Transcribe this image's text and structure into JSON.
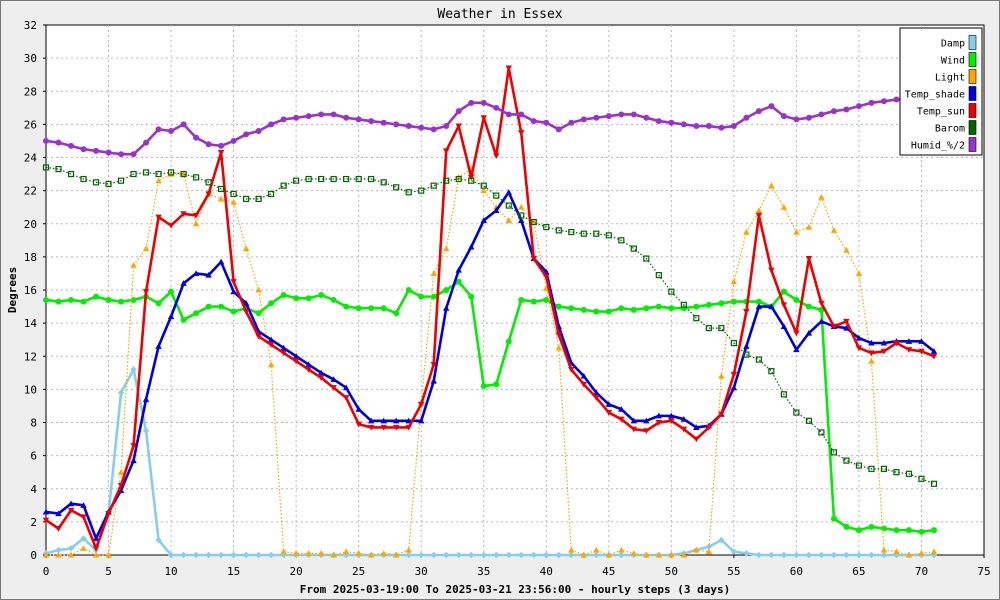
{
  "chart_data": {
    "type": "line",
    "title": "Weather in Essex",
    "xlabel": "From 2025-03-19:00 To 2025-03-21 23:56:00 - hourly steps (3 days)",
    "ylabel": "Degrees",
    "xlim": [
      0,
      75
    ],
    "ylim": [
      0,
      32
    ],
    "xticks": [
      0,
      5,
      10,
      15,
      20,
      25,
      30,
      35,
      40,
      45,
      50,
      55,
      60,
      65,
      70,
      75
    ],
    "yticks": [
      0,
      2,
      4,
      6,
      8,
      10,
      12,
      14,
      16,
      18,
      20,
      22,
      24,
      26,
      28,
      30,
      32
    ],
    "grid": true,
    "legend_position": "top-right",
    "series": [
      {
        "name": "Damp",
        "color": "#87ceeb",
        "marker": "diamond",
        "line": "solid",
        "values": [
          0.1,
          0.3,
          0.4,
          1.0,
          0.3,
          2.5,
          9.8,
          11.2,
          7.5,
          0.9,
          0,
          0,
          0,
          0,
          0,
          0,
          0,
          0,
          0,
          0,
          0,
          0,
          0,
          0,
          0,
          0,
          0,
          0,
          0,
          0,
          0,
          0,
          0,
          0,
          0,
          0,
          0,
          0,
          0,
          0,
          0,
          0,
          0,
          0,
          0,
          0,
          0,
          0,
          0,
          0,
          0,
          0.1,
          0.3,
          0.5,
          0.9,
          0.2,
          0.1,
          0,
          0,
          0,
          0,
          0,
          0,
          0,
          0,
          0,
          0,
          0,
          0,
          0,
          0,
          0
        ]
      },
      {
        "name": "Wind",
        "color": "#00ee00",
        "marker": "circle",
        "line": "solid",
        "values": [
          15.4,
          15.3,
          15.4,
          15.3,
          15.6,
          15.4,
          15.3,
          15.4,
          15.6,
          15.2,
          15.9,
          14.2,
          14.6,
          15.0,
          15.0,
          14.7,
          14.9,
          14.6,
          15.2,
          15.7,
          15.5,
          15.5,
          15.7,
          15.4,
          15.0,
          14.9,
          14.9,
          14.9,
          14.6,
          16.0,
          15.6,
          15.6,
          16.0,
          16.5,
          15.6,
          10.2,
          10.3,
          12.9,
          15.4,
          15.3,
          15.4,
          15.0,
          14.9,
          14.8,
          14.7,
          14.7,
          14.9,
          14.8,
          14.9,
          15.0,
          14.9,
          14.9,
          15.0,
          15.1,
          15.2,
          15.3,
          15.3,
          15.3,
          15.0,
          15.9,
          15.4,
          15.0,
          14.8,
          2.2,
          1.7,
          1.5,
          1.7,
          1.6,
          1.5,
          1.5,
          1.4,
          1.5
        ]
      },
      {
        "name": "Light",
        "color": "#ffa500",
        "marker": "triangle-up",
        "line": "dotted",
        "values": [
          0,
          0,
          0,
          0.4,
          0,
          0,
          5.0,
          17.5,
          18.5,
          22.6,
          23.0,
          23.0,
          20.0,
          21.8,
          21.5,
          21.3,
          18.5,
          16.0,
          11.5,
          0.2,
          0.1,
          0.1,
          0.1,
          0,
          0.2,
          0.1,
          0,
          0.1,
          0,
          0.3,
          9.2,
          17.0,
          18.5,
          22.8,
          23.3,
          22.0,
          21.0,
          20.2,
          21.0,
          20.1,
          16.1,
          12.5,
          0.3,
          0,
          0.3,
          0,
          0.3,
          0.1,
          0,
          0,
          0,
          0,
          0.3,
          0.2,
          10.8,
          16.5,
          19.5,
          20.8,
          22.3,
          21.0,
          19.5,
          19.8,
          21.6,
          19.6,
          18.4,
          17.0,
          11.7,
          0.3,
          0.2,
          0,
          0.1,
          0.2
        ]
      },
      {
        "name": "Temp_shade",
        "color": "#0000dd",
        "marker": "triangle-up",
        "line": "solid",
        "values": [
          2.6,
          2.5,
          3.1,
          3.0,
          1.0,
          2.6,
          3.9,
          5.7,
          9.4,
          12.6,
          14.4,
          16.4,
          17.0,
          16.9,
          17.7,
          15.9,
          15.2,
          13.5,
          13.0,
          12.5,
          12.0,
          11.5,
          11.0,
          10.6,
          10.1,
          8.8,
          8.1,
          8.1,
          8.1,
          8.1,
          8.1,
          10.5,
          14.9,
          17.2,
          18.6,
          20.2,
          20.8,
          21.9,
          20.2,
          17.9,
          17.1,
          13.8,
          11.6,
          10.8,
          9.8,
          9.1,
          8.8,
          8.1,
          8.1,
          8.4,
          8.4,
          8.2,
          7.7,
          7.8,
          8.5,
          10.1,
          12.6,
          15.0,
          15.0,
          13.8,
          12.4,
          13.4,
          14.1,
          13.8,
          13.7,
          13.1,
          12.8,
          12.8,
          12.9,
          12.9,
          12.9,
          12.3
        ]
      },
      {
        "name": "Temp_sun",
        "color": "#ee0000",
        "marker": "triangle-down",
        "line": "solid",
        "values": [
          2.1,
          1.6,
          2.7,
          2.3,
          0.4,
          2.5,
          4.2,
          6.6,
          15.9,
          20.4,
          19.9,
          20.6,
          20.5,
          21.8,
          24.3,
          16.5,
          14.7,
          13.2,
          12.7,
          12.2,
          11.7,
          11.2,
          10.7,
          10.1,
          9.5,
          7.9,
          7.7,
          7.7,
          7.7,
          7.7,
          9.1,
          11.5,
          24.4,
          25.9,
          22.8,
          26.4,
          24.1,
          29.4,
          25.5,
          17.9,
          16.8,
          13.3,
          11.2,
          10.3,
          9.5,
          8.6,
          8.2,
          7.6,
          7.5,
          8.0,
          8.1,
          7.6,
          7.0,
          7.7,
          8.5,
          10.9,
          14.7,
          20.5,
          17.2,
          15.1,
          13.4,
          17.9,
          15.2,
          13.8,
          14.1,
          12.5,
          12.2,
          12.3,
          12.8,
          12.4,
          12.3,
          12.0
        ]
      },
      {
        "name": "Barom",
        "color": "#006400",
        "marker": "open-square",
        "line": "dotted",
        "values": [
          23.4,
          23.3,
          23.0,
          22.7,
          22.5,
          22.4,
          22.6,
          23.0,
          23.1,
          23.0,
          23.1,
          23.0,
          22.8,
          22.5,
          22.1,
          21.8,
          21.5,
          21.5,
          21.8,
          22.3,
          22.6,
          22.7,
          22.7,
          22.7,
          22.7,
          22.7,
          22.7,
          22.5,
          22.2,
          21.9,
          22.0,
          22.3,
          22.6,
          22.7,
          22.6,
          22.3,
          21.7,
          21.1,
          20.5,
          20.1,
          19.8,
          19.6,
          19.5,
          19.4,
          19.4,
          19.3,
          19.0,
          18.5,
          17.9,
          16.9,
          15.9,
          15.1,
          14.3,
          13.7,
          13.7,
          12.8,
          12.1,
          11.8,
          11.1,
          9.7,
          8.6,
          8.1,
          7.4,
          6.2,
          5.7,
          5.4,
          5.2,
          5.2,
          5.0,
          4.9,
          4.6,
          4.3
        ]
      },
      {
        "name": "Humid_%/2",
        "color": "#9932cc",
        "marker": "circle",
        "line": "solid",
        "values": [
          25.0,
          24.9,
          24.7,
          24.5,
          24.4,
          24.3,
          24.2,
          24.2,
          24.9,
          25.7,
          25.6,
          26.0,
          25.2,
          24.8,
          24.7,
          25.0,
          25.4,
          25.6,
          26.0,
          26.3,
          26.4,
          26.5,
          26.6,
          26.6,
          26.4,
          26.3,
          26.2,
          26.1,
          26.0,
          25.9,
          25.8,
          25.7,
          25.9,
          26.8,
          27.3,
          27.3,
          27.0,
          26.6,
          26.6,
          26.2,
          26.1,
          25.7,
          26.1,
          26.3,
          26.4,
          26.5,
          26.6,
          26.6,
          26.4,
          26.2,
          26.1,
          26.0,
          25.9,
          25.9,
          25.8,
          25.9,
          26.4,
          26.8,
          27.1,
          26.5,
          26.3,
          26.4,
          26.6,
          26.8,
          26.9,
          27.1,
          27.3,
          27.4,
          27.5,
          27.5,
          27.6,
          27.6
        ]
      }
    ]
  }
}
